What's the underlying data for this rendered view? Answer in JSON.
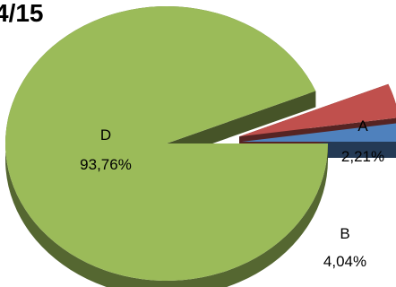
{
  "chart_data": {
    "type": "pie",
    "title": "4/15",
    "categories": [
      "A",
      "B",
      "D"
    ],
    "values": [
      2.21,
      4.04,
      93.76
    ],
    "value_labels": [
      "2,21%",
      "4,04%",
      "93,76%"
    ],
    "exploded": [
      "A",
      "B"
    ],
    "colors": {
      "A": "#4f81bd",
      "B": "#c0504d",
      "D": "#9bbb59"
    },
    "legend": "none"
  }
}
